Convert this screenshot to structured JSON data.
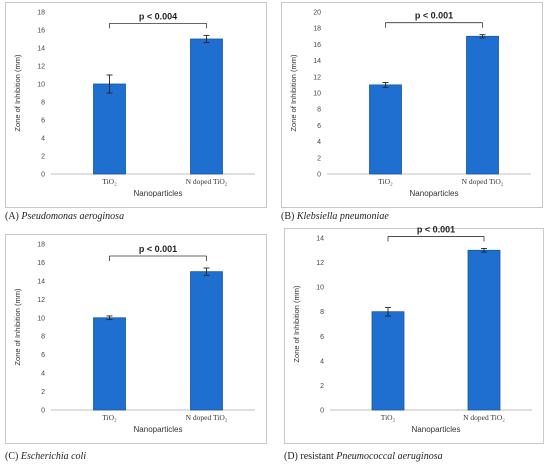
{
  "chart_data": [
    {
      "type": "bar",
      "panel_caption": {
        "letter": "(A)",
        "organism": "Pseudomonas aeroginosa"
      },
      "categories": [
        "TiO₂",
        "N doped TiO₂"
      ],
      "values": [
        10,
        15
      ],
      "errors": [
        1.0,
        0.4
      ],
      "significance": "p < 0.004",
      "xlabel": "Nanoparticles",
      "ylabel": "Zone of Inhibition (mm)",
      "ylim": [
        0,
        18
      ],
      "yticks": [
        0,
        2,
        4,
        6,
        8,
        10,
        12,
        14,
        16,
        18
      ],
      "grid": false,
      "color": "#1f6fd1"
    },
    {
      "type": "bar",
      "panel_caption": {
        "letter": "(B)",
        "organism": "Klebsiella pneumoniae"
      },
      "categories": [
        "TiO₂",
        "N doped TiO₂"
      ],
      "values": [
        11,
        17
      ],
      "errors": [
        0.3,
        0.2
      ],
      "significance": "p < 0.001",
      "xlabel": "Nanoparticles",
      "ylabel": "Zone of Inhibition (mm)",
      "ylim": [
        0,
        20
      ],
      "yticks": [
        0,
        2,
        4,
        6,
        8,
        10,
        12,
        14,
        16,
        18,
        20
      ],
      "grid": false,
      "color": "#1f6fd1"
    },
    {
      "type": "bar",
      "panel_caption": {
        "letter": "(C)",
        "organism": "Escherichia coli"
      },
      "categories": [
        "TiO₂",
        "N doped TiO₂"
      ],
      "values": [
        10,
        15
      ],
      "errors": [
        0.2,
        0.4
      ],
      "significance": "p < 0.001",
      "xlabel": "Nanoparticles",
      "ylabel": "Zone of Inhibition (mm)",
      "ylim": [
        0,
        18
      ],
      "yticks": [
        0,
        2,
        4,
        6,
        8,
        10,
        12,
        14,
        16,
        18
      ],
      "grid": false,
      "color": "#1f6fd1"
    },
    {
      "type": "bar",
      "panel_caption": {
        "letter": "(D)",
        "organism": "Pneumococcal aeruginosa",
        "prefix": "resistant"
      },
      "categories": [
        "TiO₂",
        "N doped TiO₂"
      ],
      "values": [
        8,
        13
      ],
      "errors": [
        0.35,
        0.15
      ],
      "significance": "p < 0.001",
      "xlabel": "Nanoparticles",
      "ylabel": "Zone of Inhibition (mm)",
      "ylim": [
        0,
        14
      ],
      "yticks": [
        0,
        2,
        4,
        6,
        8,
        10,
        12,
        14
      ],
      "grid": false,
      "color": "#1f6fd1"
    }
  ]
}
